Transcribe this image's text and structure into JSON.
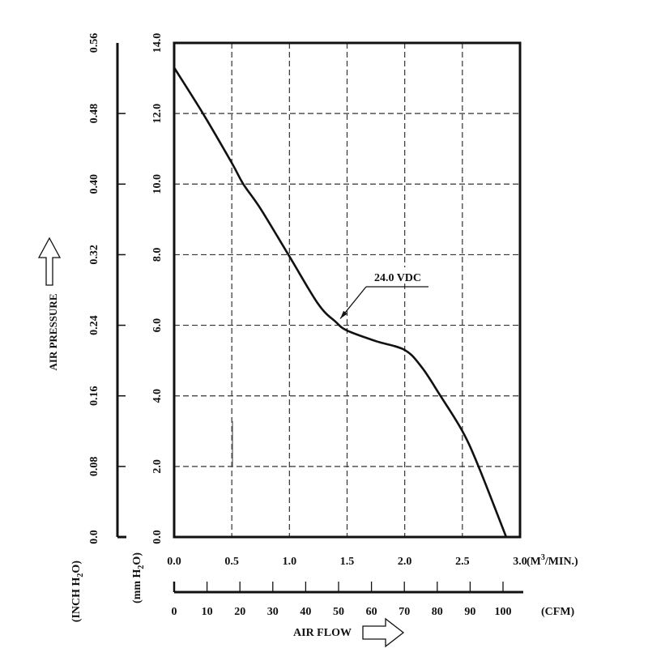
{
  "chart_data": {
    "type": "line",
    "title": "",
    "ylabel": "AIR PRESSURE",
    "xlabel": "AIR FLOW",
    "y_axes": [
      {
        "unit": "(mm H2O)",
        "unit_main": "(mm H",
        "unit_sub": "2",
        "unit_end": "O)",
        "range": [
          0,
          14
        ],
        "ticks": [
          "0.0",
          "2.0",
          "4.0",
          "6.0",
          "8.0",
          "10.0",
          "12.0",
          "14.0"
        ]
      },
      {
        "unit": "(INCH H2O)",
        "unit_main": "(INCH H",
        "unit_sub": "2",
        "unit_end": "O)",
        "range": [
          0,
          0.56
        ],
        "ticks": [
          "0.0",
          "0.08",
          "0.16",
          "0.24",
          "0.32",
          "0.40",
          "0.48",
          "0.56"
        ]
      }
    ],
    "x_axes": [
      {
        "unit": "(M3/MIN.)",
        "unit_main": "(M",
        "unit_sup": "3",
        "unit_end": "/MIN.)",
        "range": [
          0,
          3.0
        ],
        "ticks": [
          "0.0",
          "0.5",
          "1.0",
          "1.5",
          "2.0",
          "2.5",
          "3.0"
        ]
      },
      {
        "unit": "(CFM)",
        "range": [
          0,
          106
        ],
        "ticks": [
          "0",
          "10",
          "20",
          "30",
          "40",
          "50",
          "60",
          "70",
          "80",
          "90",
          "100"
        ]
      }
    ],
    "grid": true,
    "series": [
      {
        "name": "24.0 VDC",
        "x": [
          0.0,
          0.25,
          0.5,
          0.6,
          0.75,
          1.0,
          1.25,
          1.4,
          1.5,
          1.75,
          2.0,
          2.15,
          2.31,
          2.5,
          2.64,
          2.88
        ],
        "y": [
          13.3,
          12.0,
          10.6,
          10.0,
          9.3,
          7.95,
          6.6,
          6.1,
          5.85,
          5.55,
          5.3,
          4.8,
          4.0,
          3.0,
          2.0,
          0.0
        ]
      }
    ],
    "annotations": [
      {
        "text": "24.0 VDC",
        "points_to": [
          1.42,
          6.05
        ]
      }
    ],
    "colors": {
      "line": "#111111",
      "grid": "#333333"
    }
  }
}
